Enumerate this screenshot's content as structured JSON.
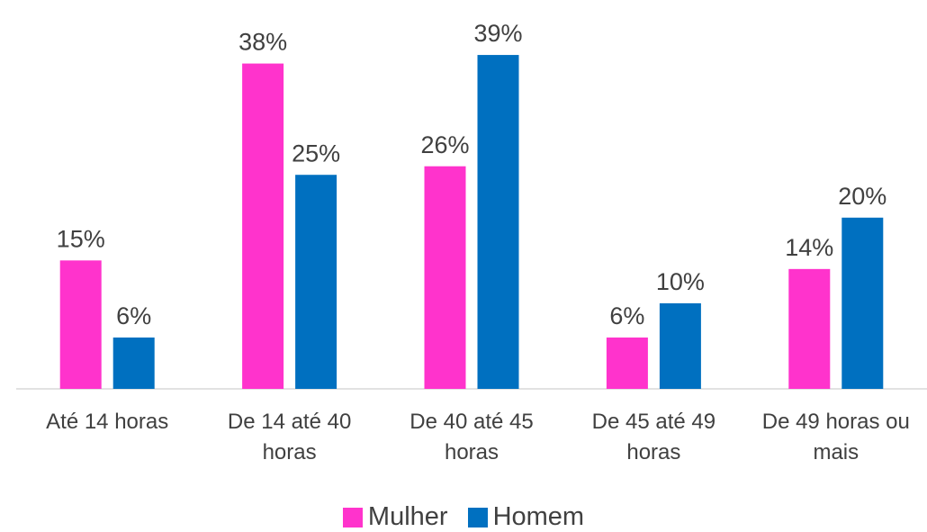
{
  "chart_data": {
    "type": "bar",
    "categories": [
      "Até 14 horas",
      "De 14 até 40 horas",
      "De 40 até 45 horas",
      "De 45 até 49 horas",
      "De 49 horas ou mais"
    ],
    "series": [
      {
        "name": "Mulher",
        "color": "#ff33cc",
        "values": [
          15,
          38,
          26,
          6,
          14
        ],
        "value_labels": [
          "15%",
          "38%",
          "26%",
          "6%",
          "14%"
        ]
      },
      {
        "name": "Homem",
        "color": "#0070c0",
        "values": [
          6,
          25,
          39,
          10,
          20
        ],
        "value_labels": [
          "6%",
          "25%",
          "39%",
          "10%",
          "20%"
        ]
      }
    ],
    "ylim": [
      0,
      45
    ],
    "legend": "bottom"
  }
}
